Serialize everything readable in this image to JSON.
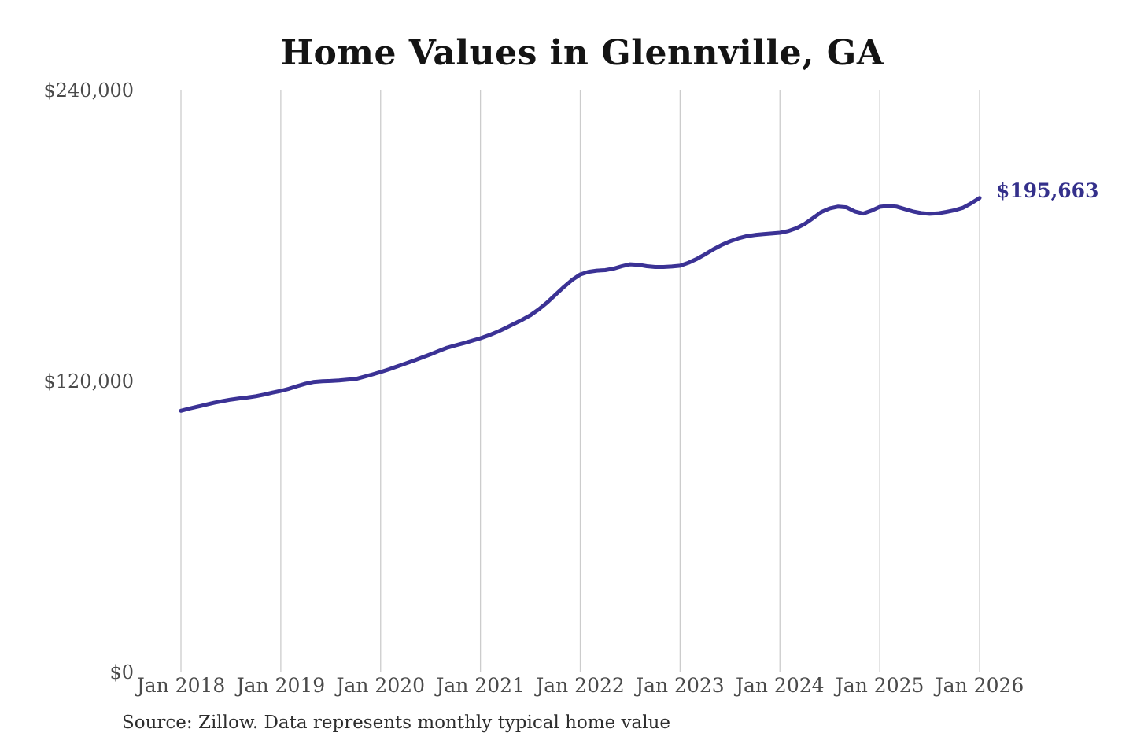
{
  "chart": {
    "title": "Home Values in Glennville, GA",
    "end_label": "$195,663",
    "source": "Source: Zillow. Data represents monthly typical home value",
    "colors": {
      "line": "#3b3295",
      "end_label": "#34308b",
      "grid": "#cccccc",
      "axis_text": "#4a4a4a",
      "title_text": "#141414",
      "source_text": "#2e2e2e",
      "background": "#ffffff"
    }
  },
  "chart_data": {
    "type": "line",
    "title": "Home Values in Glennville, GA",
    "xlabel": "",
    "ylabel": "",
    "x_unit": "month",
    "x_tick_labels": [
      "Jan 2018",
      "Jan 2019",
      "Jan 2020",
      "Jan 2021",
      "Jan 2022",
      "Jan 2023",
      "Jan 2024",
      "Jan 2025",
      "Jan 2026"
    ],
    "y_tick_labels": [
      "$0",
      "$120,000",
      "$240,000"
    ],
    "y_ticks": [
      0,
      120000,
      240000
    ],
    "ylim": [
      0,
      240000
    ],
    "grid": "vertical-only",
    "legend": "none",
    "end_value": 195663,
    "end_value_label": "$195,663",
    "source": "Source: Zillow. Data represents monthly typical home value",
    "series": [
      {
        "name": "Monthly typical home value",
        "start": "Jan 2018",
        "end": "Jan 2026",
        "interval": "monthly",
        "values": [
          107900,
          108800,
          109600,
          110400,
          111200,
          111900,
          112500,
          113000,
          113400,
          113900,
          114600,
          115400,
          116100,
          117000,
          118100,
          119100,
          119800,
          120100,
          120200,
          120400,
          120700,
          121000,
          121900,
          122900,
          123900,
          125000,
          126200,
          127400,
          128600,
          129900,
          131200,
          132600,
          133900,
          134900,
          135800,
          136800,
          137800,
          139000,
          140400,
          142000,
          143700,
          145400,
          147300,
          149700,
          152500,
          155700,
          158900,
          161800,
          164100,
          165200,
          165700,
          165900,
          166500,
          167500,
          168300,
          168100,
          167500,
          167200,
          167200,
          167400,
          167700,
          168900,
          170500,
          172400,
          174500,
          176300,
          177800,
          179000,
          179900,
          180400,
          180700,
          181000,
          181300,
          182000,
          183200,
          185000,
          187400,
          189900,
          191400,
          192100,
          191800,
          190100,
          189200,
          190400,
          192000,
          192400,
          192100,
          191100,
          190100,
          189400,
          189100,
          189300,
          189900,
          190600,
          191600,
          193500,
          195663
        ]
      }
    ]
  }
}
